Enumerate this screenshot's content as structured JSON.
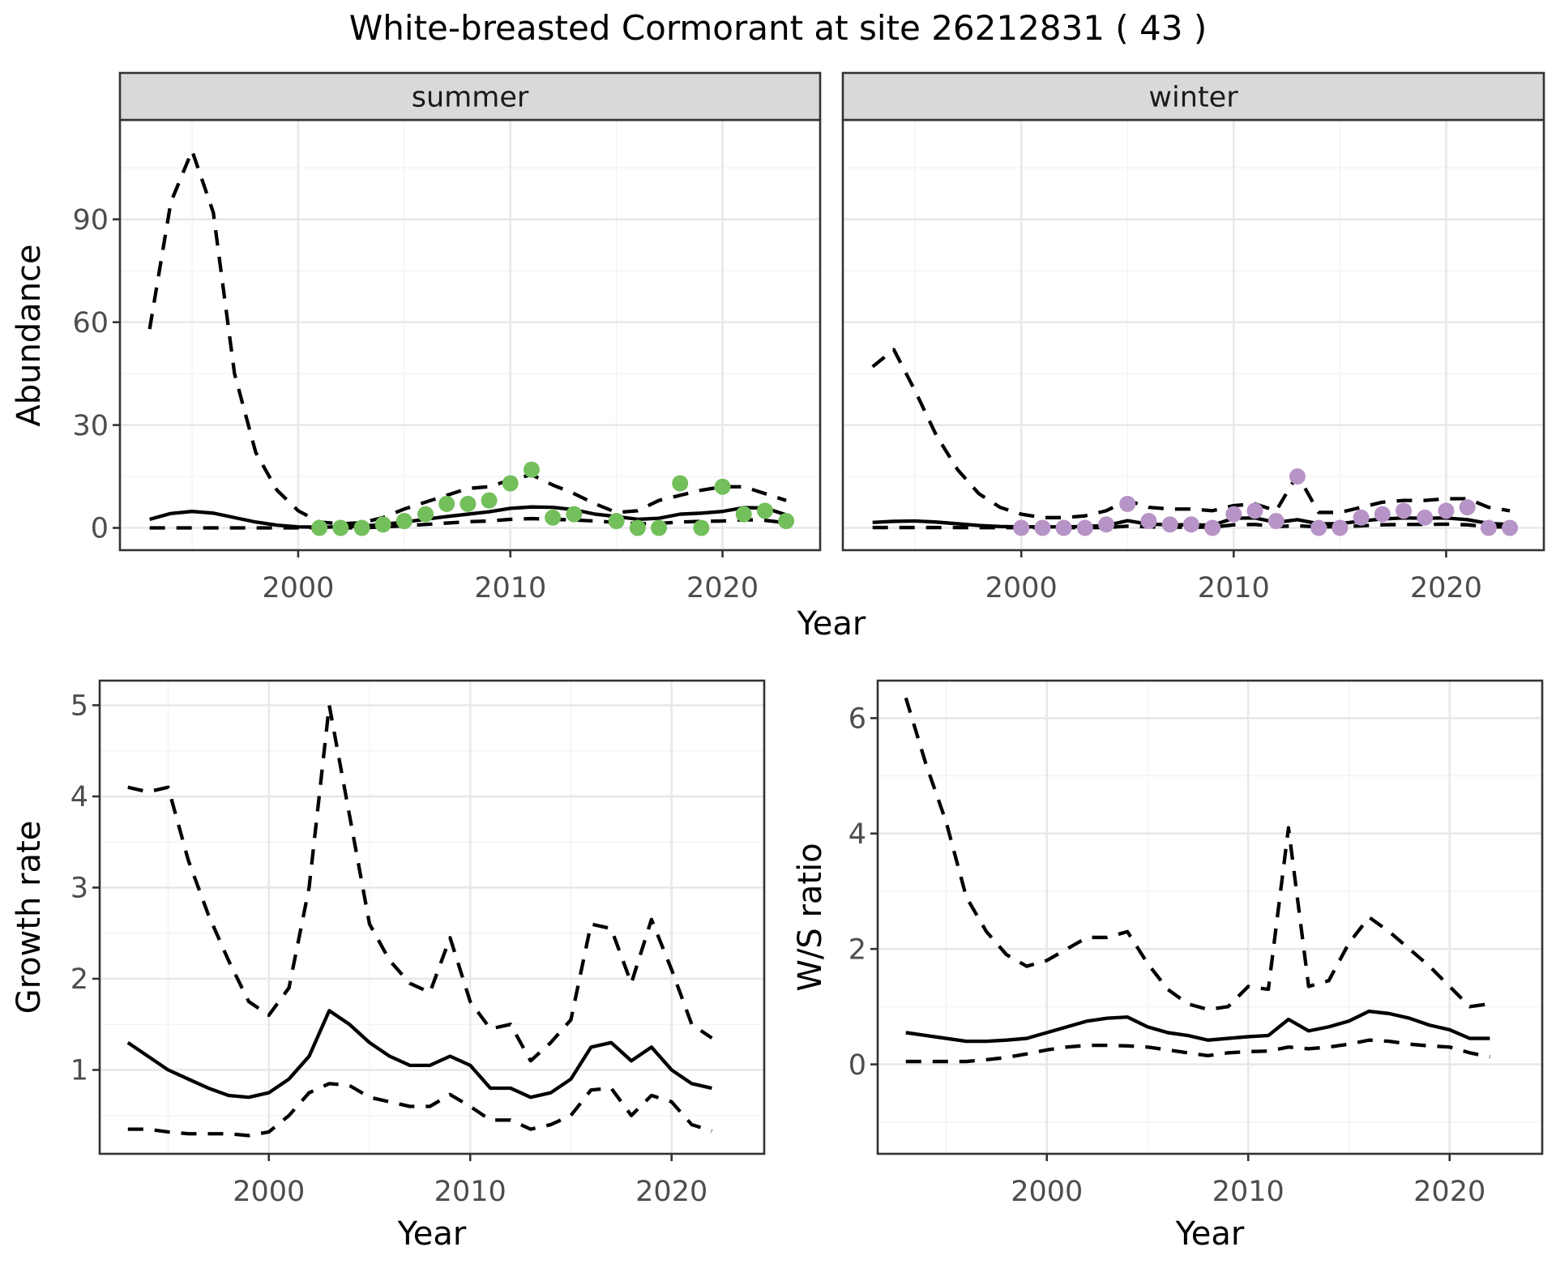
{
  "title": "White-breasted Cormorant at site 26212831 ( 43 )",
  "facet_labels": {
    "summer": "summer",
    "winter": "winter"
  },
  "axis_titles": {
    "abundance": "Abundance",
    "year_top": "Year",
    "growth": "Growth rate",
    "ws": "W/S ratio",
    "year_growth": "Year",
    "year_ws": "Year"
  },
  "colors": {
    "summer_point": "#73BF5B",
    "winter_point": "#B794C7",
    "line": "#000000",
    "grid_major": "#E8E8E8",
    "grid_minor": "#F3F3F3",
    "panel_bg": "#FFFFFF",
    "strip_bg": "#D9D9D9",
    "panel_border": "#333333",
    "tick_mark": "#333333",
    "tick_text": "#4D4D4D",
    "strip_text": "#1A1A1A"
  },
  "chart_data": [
    {
      "id": "abundance-summer",
      "type": "line",
      "facet": "summer",
      "title": "",
      "xlabel": "Year",
      "ylabel": "Abundance",
      "x_domain": [
        1991.6,
        2024.6
      ],
      "y_domain": [
        -6.5,
        119
      ],
      "x_ticks": [
        2000,
        2010,
        2020
      ],
      "x_minor": [
        1995,
        2005,
        2015
      ],
      "y_ticks": [
        0,
        30,
        60,
        90
      ],
      "y_minor": [
        15,
        45,
        75,
        105
      ],
      "grid": true,
      "legend": "none",
      "series": [
        {
          "name": "upper-ci",
          "style": "dashed",
          "years": [
            1993,
            1994,
            1995,
            1996,
            1997,
            1998,
            1999,
            2000,
            2001,
            2002,
            2003,
            2004,
            2005,
            2006,
            2007,
            2008,
            2009,
            2010,
            2011,
            2012,
            2013,
            2014,
            2015,
            2016,
            2017,
            2018,
            2019,
            2020,
            2021,
            2022,
            2023
          ],
          "values": [
            58,
            95,
            110,
            92,
            45,
            22,
            11,
            5,
            1.7,
            1.2,
            1.5,
            3,
            5.5,
            7.5,
            9.5,
            11.5,
            12,
            14,
            15.5,
            12.5,
            10,
            7,
            4.5,
            5,
            8,
            9.5,
            11,
            12,
            12,
            10,
            8
          ]
        },
        {
          "name": "fit",
          "style": "solid",
          "years": [
            1993,
            1994,
            1995,
            1996,
            1997,
            1998,
            1999,
            2000,
            2001,
            2002,
            2003,
            2004,
            2005,
            2006,
            2007,
            2008,
            2009,
            2010,
            2011,
            2012,
            2013,
            2014,
            2015,
            2016,
            2017,
            2018,
            2019,
            2020,
            2021,
            2022,
            2023
          ],
          "values": [
            2.5,
            4.2,
            4.8,
            4.3,
            3,
            1.7,
            0.8,
            0.3,
            0.2,
            0.3,
            0.5,
            1,
            1.7,
            2.5,
            3.3,
            4,
            4.7,
            5.7,
            6.1,
            6,
            5.3,
            4,
            3.3,
            2.5,
            2.8,
            4,
            4.3,
            4.8,
            5.9,
            5.8,
            3.8
          ]
        },
        {
          "name": "lower-ci",
          "style": "dashed",
          "years": [
            1993,
            1994,
            1995,
            1996,
            1997,
            1998,
            1999,
            2000,
            2001,
            2002,
            2003,
            2004,
            2005,
            2006,
            2007,
            2008,
            2009,
            2010,
            2011,
            2012,
            2013,
            2014,
            2015,
            2016,
            2017,
            2018,
            2019,
            2020,
            2021,
            2022,
            2023
          ],
          "values": [
            0,
            0,
            0,
            0,
            0,
            0,
            0,
            0,
            0,
            0,
            0,
            0.3,
            0.6,
            1,
            1.4,
            1.8,
            2,
            2.5,
            2.7,
            2.5,
            2.3,
            2,
            1.6,
            1.2,
            1.3,
            1.7,
            1.9,
            2,
            2.4,
            2.2,
            1.5
          ]
        },
        {
          "name": "observed",
          "style": "points",
          "color_key": "summer_point",
          "years": [
            2001,
            2002,
            2003,
            2004,
            2005,
            2006,
            2007,
            2008,
            2009,
            2010,
            2011,
            2012,
            2013,
            2015,
            2016,
            2017,
            2018,
            2019,
            2020,
            2021,
            2022,
            2023
          ],
          "values": [
            0,
            0,
            0,
            1,
            2,
            4,
            7,
            7,
            8,
            13,
            17,
            3,
            4,
            2,
            0,
            0,
            13,
            0,
            12,
            4,
            5,
            2
          ]
        }
      ]
    },
    {
      "id": "abundance-winter",
      "type": "line",
      "facet": "winter",
      "title": "",
      "xlabel": "Year",
      "ylabel": "Abundance",
      "x_domain": [
        1991.6,
        2024.6
      ],
      "y_domain": [
        -6.5,
        119
      ],
      "x_ticks": [
        2000,
        2010,
        2020
      ],
      "x_minor": [
        1995,
        2005,
        2015
      ],
      "y_ticks": [
        0,
        30,
        60,
        90
      ],
      "y_minor": [
        15,
        45,
        75,
        105
      ],
      "grid": true,
      "legend": "none",
      "series": [
        {
          "name": "upper-ci",
          "style": "dashed",
          "years": [
            1993,
            1994,
            1995,
            1996,
            1997,
            1998,
            1999,
            2000,
            2001,
            2002,
            2003,
            2004,
            2005,
            2006,
            2007,
            2008,
            2009,
            2010,
            2011,
            2012,
            2013,
            2014,
            2015,
            2016,
            2017,
            2018,
            2019,
            2020,
            2021,
            2022,
            2023
          ],
          "values": [
            47,
            52,
            40,
            27,
            17,
            10,
            6,
            4,
            3,
            3,
            3.5,
            5,
            8,
            6,
            5.5,
            5.5,
            5,
            6.5,
            7,
            5,
            15.5,
            4.5,
            4.5,
            6,
            7.5,
            8,
            8,
            8.5,
            8.5,
            6,
            5
          ]
        },
        {
          "name": "fit",
          "style": "solid",
          "years": [
            1993,
            1994,
            1995,
            1996,
            1997,
            1998,
            1999,
            2000,
            2001,
            2002,
            2003,
            2004,
            2005,
            2006,
            2007,
            2008,
            2009,
            2010,
            2011,
            2012,
            2013,
            2014,
            2015,
            2016,
            2017,
            2018,
            2019,
            2020,
            2021,
            2022,
            2023
          ],
          "values": [
            1.6,
            1.9,
            2,
            1.7,
            1.2,
            0.7,
            0.4,
            0.3,
            0.3,
            0.3,
            0.4,
            0.7,
            2.1,
            1.1,
            0.9,
            0.9,
            0.8,
            2.8,
            2.9,
            1.6,
            2.4,
            1.2,
            1.2,
            2,
            2.6,
            2.9,
            2.8,
            2.9,
            2.4,
            1.3,
            1
          ]
        },
        {
          "name": "lower-ci",
          "style": "dashed",
          "years": [
            1993,
            1994,
            1995,
            1996,
            1997,
            1998,
            1999,
            2000,
            2001,
            2002,
            2003,
            2004,
            2005,
            2006,
            2007,
            2008,
            2009,
            2010,
            2011,
            2012,
            2013,
            2014,
            2015,
            2016,
            2017,
            2018,
            2019,
            2020,
            2021,
            2022,
            2023
          ],
          "values": [
            0.1,
            0.1,
            0.1,
            0.1,
            0.08,
            0.05,
            0.05,
            0.05,
            0.05,
            0.05,
            0.05,
            0.1,
            0.5,
            0.3,
            0.2,
            0.2,
            0.2,
            0.9,
            1,
            0.4,
            0.6,
            0.3,
            0.3,
            0.6,
            0.9,
            1,
            1,
            1.1,
            0.9,
            0.3,
            0.25
          ]
        },
        {
          "name": "observed",
          "style": "points",
          "color_key": "winter_point",
          "years": [
            2000,
            2001,
            2002,
            2003,
            2004,
            2005,
            2006,
            2007,
            2008,
            2009,
            2010,
            2011,
            2012,
            2013,
            2014,
            2015,
            2016,
            2017,
            2018,
            2019,
            2020,
            2021,
            2022,
            2023
          ],
          "values": [
            0,
            0,
            0,
            0,
            1,
            7,
            2,
            1,
            1,
            0,
            4,
            5,
            2,
            15,
            0,
            0,
            3,
            4,
            5,
            3,
            5,
            6,
            0,
            0
          ]
        }
      ]
    },
    {
      "id": "growth-rate",
      "type": "line",
      "facet": null,
      "title": "",
      "xlabel": "Year",
      "ylabel": "Growth rate",
      "x_domain": [
        1991.6,
        2024.6
      ],
      "y_domain": [
        0.08,
        5.27
      ],
      "x_ticks": [
        2000,
        2010,
        2020
      ],
      "x_minor": [
        1995,
        2005,
        2015
      ],
      "y_ticks": [
        1,
        2,
        3,
        4,
        5
      ],
      "y_minor": [
        0.5,
        1.5,
        2.5,
        3.5,
        4.5
      ],
      "grid": true,
      "legend": "none",
      "series": [
        {
          "name": "upper-ci",
          "style": "dashed",
          "years": [
            1993,
            1994,
            1995,
            1996,
            1997,
            1998,
            1999,
            2000,
            2001,
            2002,
            2003,
            2004,
            2005,
            2006,
            2007,
            2008,
            2009,
            2010,
            2011,
            2012,
            2013,
            2014,
            2015,
            2016,
            2017,
            2018,
            2019,
            2020,
            2021,
            2022
          ],
          "values": [
            4.1,
            4.05,
            4.1,
            3.3,
            2.7,
            2.2,
            1.75,
            1.6,
            1.9,
            3,
            5,
            3.8,
            2.6,
            2.2,
            1.95,
            1.85,
            2.45,
            1.75,
            1.45,
            1.5,
            1.1,
            1.3,
            1.55,
            2.6,
            2.55,
            1.95,
            2.65,
            2.1,
            1.5,
            1.35
          ]
        },
        {
          "name": "fit",
          "style": "solid",
          "years": [
            1993,
            1994,
            1995,
            1996,
            1997,
            1998,
            1999,
            2000,
            2001,
            2002,
            2003,
            2004,
            2005,
            2006,
            2007,
            2008,
            2009,
            2010,
            2011,
            2012,
            2013,
            2014,
            2015,
            2016,
            2017,
            2018,
            2019,
            2020,
            2021,
            2022
          ],
          "values": [
            1.3,
            1.15,
            1,
            0.9,
            0.8,
            0.72,
            0.7,
            0.75,
            0.9,
            1.15,
            1.65,
            1.5,
            1.3,
            1.15,
            1.05,
            1.05,
            1.15,
            1.05,
            0.8,
            0.8,
            0.7,
            0.75,
            0.9,
            1.25,
            1.3,
            1.1,
            1.25,
            1,
            0.85,
            0.8
          ]
        },
        {
          "name": "lower-ci",
          "style": "dashed",
          "years": [
            1993,
            1994,
            1995,
            1996,
            1997,
            1998,
            1999,
            2000,
            2001,
            2002,
            2003,
            2004,
            2005,
            2006,
            2007,
            2008,
            2009,
            2010,
            2011,
            2012,
            2013,
            2014,
            2015,
            2016,
            2017,
            2018,
            2019,
            2020,
            2021,
            2022
          ],
          "values": [
            0.35,
            0.35,
            0.32,
            0.3,
            0.3,
            0.3,
            0.28,
            0.32,
            0.5,
            0.75,
            0.85,
            0.83,
            0.7,
            0.65,
            0.6,
            0.6,
            0.73,
            0.6,
            0.45,
            0.45,
            0.35,
            0.4,
            0.5,
            0.78,
            0.8,
            0.5,
            0.72,
            0.65,
            0.4,
            0.33
          ]
        }
      ]
    },
    {
      "id": "ws-ratio",
      "type": "line",
      "facet": null,
      "title": "",
      "xlabel": "Year",
      "ylabel": "W/S ratio",
      "x_domain": [
        1991.6,
        2024.6
      ],
      "y_domain": [
        -1.55,
        6.65
      ],
      "x_ticks": [
        2000,
        2010,
        2020
      ],
      "x_minor": [
        1995,
        2005,
        2015
      ],
      "y_ticks": [
        0,
        2,
        4,
        6
      ],
      "y_minor": [
        -1,
        1,
        3,
        5
      ],
      "grid": true,
      "legend": "none",
      "series": [
        {
          "name": "upper-ci",
          "style": "dashed",
          "years": [
            1993,
            1994,
            1995,
            1996,
            1997,
            1998,
            1999,
            2000,
            2001,
            2002,
            2003,
            2004,
            2005,
            2006,
            2007,
            2008,
            2009,
            2010,
            2011,
            2012,
            2013,
            2014,
            2015,
            2016,
            2017,
            2018,
            2019,
            2020,
            2021,
            2022
          ],
          "values": [
            6.35,
            5.2,
            4.2,
            2.9,
            2.3,
            1.9,
            1.7,
            1.8,
            2,
            2.2,
            2.2,
            2.3,
            1.75,
            1.3,
            1.05,
            0.95,
            1,
            1.35,
            1.3,
            4.1,
            1.35,
            1.45,
            2.1,
            2.55,
            2.3,
            2,
            1.7,
            1.35,
            1,
            1.05
          ]
        },
        {
          "name": "fit",
          "style": "solid",
          "years": [
            1993,
            1994,
            1995,
            1996,
            1997,
            1998,
            1999,
            2000,
            2001,
            2002,
            2003,
            2004,
            2005,
            2006,
            2007,
            2008,
            2009,
            2010,
            2011,
            2012,
            2013,
            2014,
            2015,
            2016,
            2017,
            2018,
            2019,
            2020,
            2021,
            2022
          ],
          "values": [
            0.55,
            0.5,
            0.45,
            0.4,
            0.4,
            0.42,
            0.45,
            0.55,
            0.65,
            0.75,
            0.8,
            0.82,
            0.65,
            0.55,
            0.5,
            0.42,
            0.45,
            0.48,
            0.5,
            0.78,
            0.58,
            0.65,
            0.75,
            0.92,
            0.88,
            0.8,
            0.68,
            0.6,
            0.45,
            0.45
          ]
        },
        {
          "name": "lower-ci",
          "style": "dashed",
          "years": [
            1993,
            1994,
            1995,
            1996,
            1997,
            1998,
            1999,
            2000,
            2001,
            2002,
            2003,
            2004,
            2005,
            2006,
            2007,
            2008,
            2009,
            2010,
            2011,
            2012,
            2013,
            2014,
            2015,
            2016,
            2017,
            2018,
            2019,
            2020,
            2021,
            2022
          ],
          "values": [
            0.05,
            0.05,
            0.05,
            0.05,
            0.08,
            0.12,
            0.18,
            0.25,
            0.3,
            0.33,
            0.33,
            0.32,
            0.3,
            0.25,
            0.2,
            0.15,
            0.2,
            0.22,
            0.23,
            0.3,
            0.27,
            0.3,
            0.35,
            0.42,
            0.4,
            0.35,
            0.32,
            0.3,
            0.2,
            0.13
          ]
        }
      ]
    }
  ]
}
